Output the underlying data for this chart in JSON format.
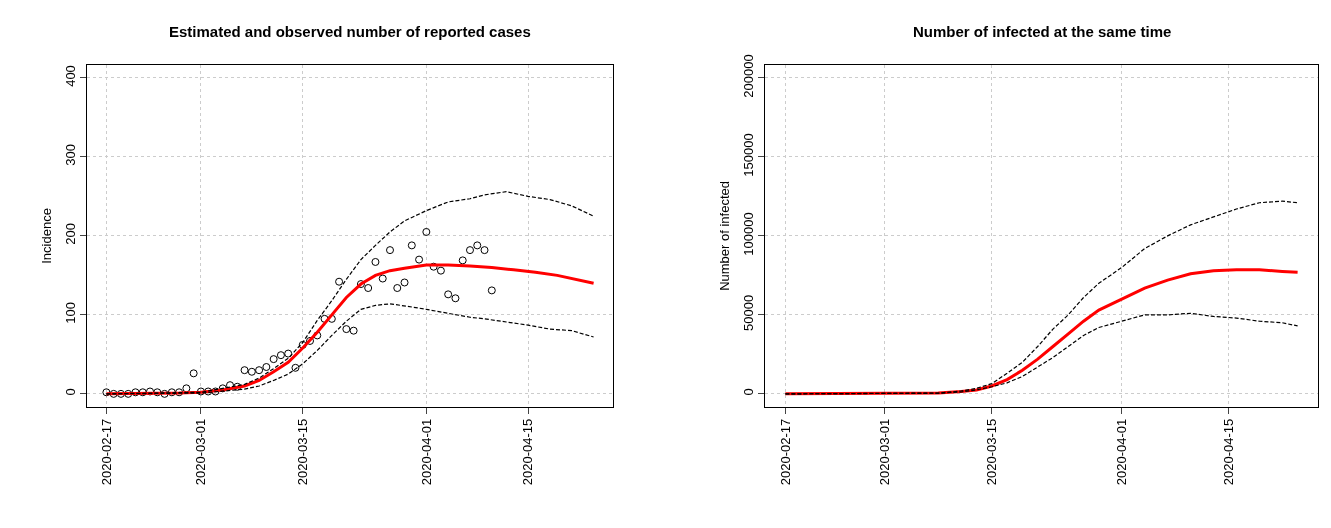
{
  "chart_data": [
    {
      "type": "line",
      "title": "Estimated and observed number of reported cases",
      "ylabel": "Incidence",
      "xlim": [
        "2020-02-14T08:00",
        "2020-04-26T16:00"
      ],
      "ylim": [
        -16,
        416
      ],
      "xticks": [
        "2020-02-17",
        "2020-03-01",
        "2020-03-15",
        "2020-04-01",
        "2020-04-15"
      ],
      "yticks": [
        0,
        100,
        200,
        300,
        400
      ],
      "grid": true,
      "series": [
        {
          "type": "scatter",
          "marker": "circle",
          "color": "#000000",
          "x": [
            "2020-02-17",
            "2020-02-18",
            "2020-02-19",
            "2020-02-20",
            "2020-02-21",
            "2020-02-22",
            "2020-02-23",
            "2020-02-24",
            "2020-02-25",
            "2020-02-26",
            "2020-02-27",
            "2020-02-28",
            "2020-02-29",
            "2020-03-01",
            "2020-03-02",
            "2020-03-03",
            "2020-03-04",
            "2020-03-05",
            "2020-03-06",
            "2020-03-07",
            "2020-03-08",
            "2020-03-09",
            "2020-03-10",
            "2020-03-11",
            "2020-03-12",
            "2020-03-13",
            "2020-03-14",
            "2020-03-15",
            "2020-03-16",
            "2020-03-17",
            "2020-03-18",
            "2020-03-19",
            "2020-03-20",
            "2020-03-21",
            "2020-03-22",
            "2020-03-23",
            "2020-03-24",
            "2020-03-25",
            "2020-03-26",
            "2020-03-27",
            "2020-03-28",
            "2020-03-29",
            "2020-03-30",
            "2020-03-31",
            "2020-04-01",
            "2020-04-02",
            "2020-04-03",
            "2020-04-04",
            "2020-04-05",
            "2020-04-06",
            "2020-04-07",
            "2020-04-08",
            "2020-04-09",
            "2020-04-10"
          ],
          "values": [
            2,
            0,
            0,
            0,
            2,
            2,
            3,
            2,
            0,
            2,
            2,
            7,
            26,
            3,
            3,
            3,
            7,
            11,
            9,
            30,
            28,
            30,
            34,
            44,
            49,
            51,
            33,
            62,
            67,
            74,
            95,
            95,
            142,
            82,
            80,
            139,
            134,
            167,
            146,
            182,
            134,
            141,
            188,
            170,
            205,
            161,
            156,
            126,
            121,
            169,
            182,
            188,
            182,
            131
          ]
        },
        {
          "marker": "none",
          "line_style": "solid",
          "color": "#ff0000",
          "x": [
            "2020-02-17",
            "2020-02-27",
            "2020-03-01",
            "2020-03-04",
            "2020-03-07",
            "2020-03-09",
            "2020-03-11",
            "2020-03-13",
            "2020-03-15",
            "2020-03-17",
            "2020-03-19",
            "2020-03-21",
            "2020-03-23",
            "2020-03-25",
            "2020-03-27",
            "2020-03-29",
            "2020-04-01",
            "2020-04-04",
            "2020-04-07",
            "2020-04-10",
            "2020-04-13",
            "2020-04-16",
            "2020-04-19",
            "2020-04-24"
          ],
          "values": [
            0,
            1,
            2,
            5,
            10,
            17,
            28,
            40,
            58,
            78,
            100,
            122,
            139,
            150,
            156,
            159,
            163,
            163,
            162,
            160,
            157,
            154,
            150,
            140
          ]
        },
        {
          "marker": "none",
          "line_style": "dashed",
          "color": "#000000",
          "x": [
            "2020-02-17",
            "2020-03-01",
            "2020-03-07",
            "2020-03-09",
            "2020-03-11",
            "2020-03-13",
            "2020-03-15",
            "2020-03-17",
            "2020-03-19",
            "2020-03-21",
            "2020-03-23",
            "2020-03-25",
            "2020-03-27",
            "2020-03-29",
            "2020-04-01",
            "2020-04-04",
            "2020-04-07",
            "2020-04-09",
            "2020-04-12",
            "2020-04-15",
            "2020-04-18",
            "2020-04-21",
            "2020-04-24"
          ],
          "values": [
            0,
            2,
            12,
            20,
            32,
            45,
            65,
            93,
            118,
            145,
            170,
            188,
            205,
            219,
            232,
            243,
            247,
            252,
            256,
            250,
            246,
            238,
            225
          ]
        },
        {
          "marker": "none",
          "line_style": "dashed",
          "color": "#000000",
          "x": [
            "2020-02-17",
            "2020-03-01",
            "2020-03-07",
            "2020-03-09",
            "2020-03-11",
            "2020-03-13",
            "2020-03-15",
            "2020-03-17",
            "2020-03-19",
            "2020-03-21",
            "2020-03-23",
            "2020-03-25",
            "2020-03-27",
            "2020-03-30",
            "2020-04-01",
            "2020-04-04",
            "2020-04-07",
            "2020-04-09",
            "2020-04-12",
            "2020-04-15",
            "2020-04-18",
            "2020-04-21",
            "2020-04-24"
          ],
          "values": [
            0,
            1,
            6,
            10,
            17,
            25,
            38,
            55,
            74,
            92,
            107,
            112,
            114,
            110,
            107,
            102,
            97,
            95,
            91,
            87,
            82,
            80,
            72
          ]
        }
      ]
    },
    {
      "type": "line",
      "title": "Number of infected at the same time",
      "ylabel": "Number of infected",
      "xlim": [
        "2020-02-14T08:00",
        "2020-04-26T16:00"
      ],
      "ylim": [
        -8000,
        208000
      ],
      "xticks": [
        "2020-02-17",
        "2020-03-01",
        "2020-03-15",
        "2020-04-01",
        "2020-04-15"
      ],
      "yticks": [
        0,
        50000,
        100000,
        150000,
        200000
      ],
      "grid": true,
      "series": [
        {
          "marker": "none",
          "line_style": "solid",
          "color": "#ff0000",
          "x": [
            "2020-02-17",
            "2020-03-08",
            "2020-03-11",
            "2020-03-13",
            "2020-03-15",
            "2020-03-17",
            "2020-03-19",
            "2020-03-21",
            "2020-03-23",
            "2020-03-25",
            "2020-03-27",
            "2020-03-29",
            "2020-04-01",
            "2020-04-04",
            "2020-04-07",
            "2020-04-10",
            "2020-04-13",
            "2020-04-16",
            "2020-04-19",
            "2020-04-22",
            "2020-04-24"
          ],
          "values": [
            0,
            500,
            1500,
            2500,
            5000,
            9000,
            15000,
            22000,
            30000,
            38000,
            46000,
            53000,
            60000,
            67000,
            72000,
            76000,
            78000,
            78500,
            78500,
            77500,
            77000
          ]
        },
        {
          "marker": "none",
          "line_style": "dashed",
          "color": "#000000",
          "x": [
            "2020-02-17",
            "2020-03-08",
            "2020-03-11",
            "2020-03-13",
            "2020-03-15",
            "2020-03-17",
            "2020-03-19",
            "2020-03-21",
            "2020-03-23",
            "2020-03-25",
            "2020-03-27",
            "2020-03-29",
            "2020-04-01",
            "2020-04-04",
            "2020-04-07",
            "2020-04-10",
            "2020-04-13",
            "2020-04-16",
            "2020-04-19",
            "2020-04-22",
            "2020-04-24"
          ],
          "values": [
            0,
            500,
            1800,
            3500,
            6500,
            13000,
            20000,
            30000,
            41000,
            50000,
            61000,
            70000,
            80000,
            92000,
            100000,
            107000,
            112000,
            117000,
            121000,
            122000,
            121000
          ]
        },
        {
          "marker": "none",
          "line_style": "dashed",
          "color": "#000000",
          "x": [
            "2020-02-17",
            "2020-03-08",
            "2020-03-11",
            "2020-03-13",
            "2020-03-15",
            "2020-03-17",
            "2020-03-19",
            "2020-03-21",
            "2020-03-23",
            "2020-03-25",
            "2020-03-27",
            "2020-03-29",
            "2020-04-01",
            "2020-04-04",
            "2020-04-07",
            "2020-04-10",
            "2020-04-13",
            "2020-04-16",
            "2020-04-19",
            "2020-04-22",
            "2020-04-24"
          ],
          "values": [
            0,
            400,
            1200,
            2500,
            4500,
            7000,
            11000,
            17000,
            23000,
            30000,
            37000,
            42000,
            46000,
            50000,
            50000,
            51000,
            49000,
            48000,
            46000,
            45000,
            43000
          ]
        }
      ]
    }
  ]
}
